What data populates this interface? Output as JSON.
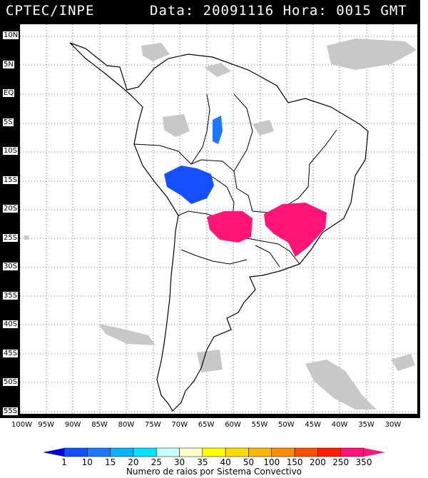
{
  "header": {
    "source": "CPTEC/INPE",
    "datetime": "Data: 20091116 Hora: 0015 GMT"
  },
  "axes": {
    "lat_labels": [
      "10N",
      "5N",
      "EQ",
      "5S",
      "10S",
      "15S",
      "20S",
      "25S",
      "30S",
      "35S",
      "40S",
      "45S",
      "50S",
      "55S"
    ],
    "lon_labels": [
      "100W",
      "95W",
      "90W",
      "85W",
      "80W",
      "75W",
      "70W",
      "65W",
      "60W",
      "55W",
      "50W",
      "45W",
      "40W",
      "35W",
      "30W"
    ]
  },
  "colors": {
    "ocean": "#ffffff",
    "land": "#ffffff",
    "border": "#000000",
    "cloud": "#c8c8c8",
    "system_1": "#1450ff",
    "system_2": "#1e78ff",
    "system_3": "#ff1478"
  },
  "legend": {
    "labels": [
      "1",
      "10",
      "15",
      "20",
      "25",
      "30",
      "35",
      "40",
      "50",
      "100",
      "150",
      "200",
      "250",
      "350"
    ],
    "colors": [
      "#0000dc",
      "#1450ff",
      "#1e78ff",
      "#00b4ff",
      "#00e1ff",
      "#c8ffff",
      "#ffffc8",
      "#ffff00",
      "#ffdc00",
      "#ffb400",
      "#ff8c00",
      "#ff5000",
      "#ff1e00",
      "#ff1478"
    ],
    "title": "Numero de raios por Sistema Convectivo"
  }
}
